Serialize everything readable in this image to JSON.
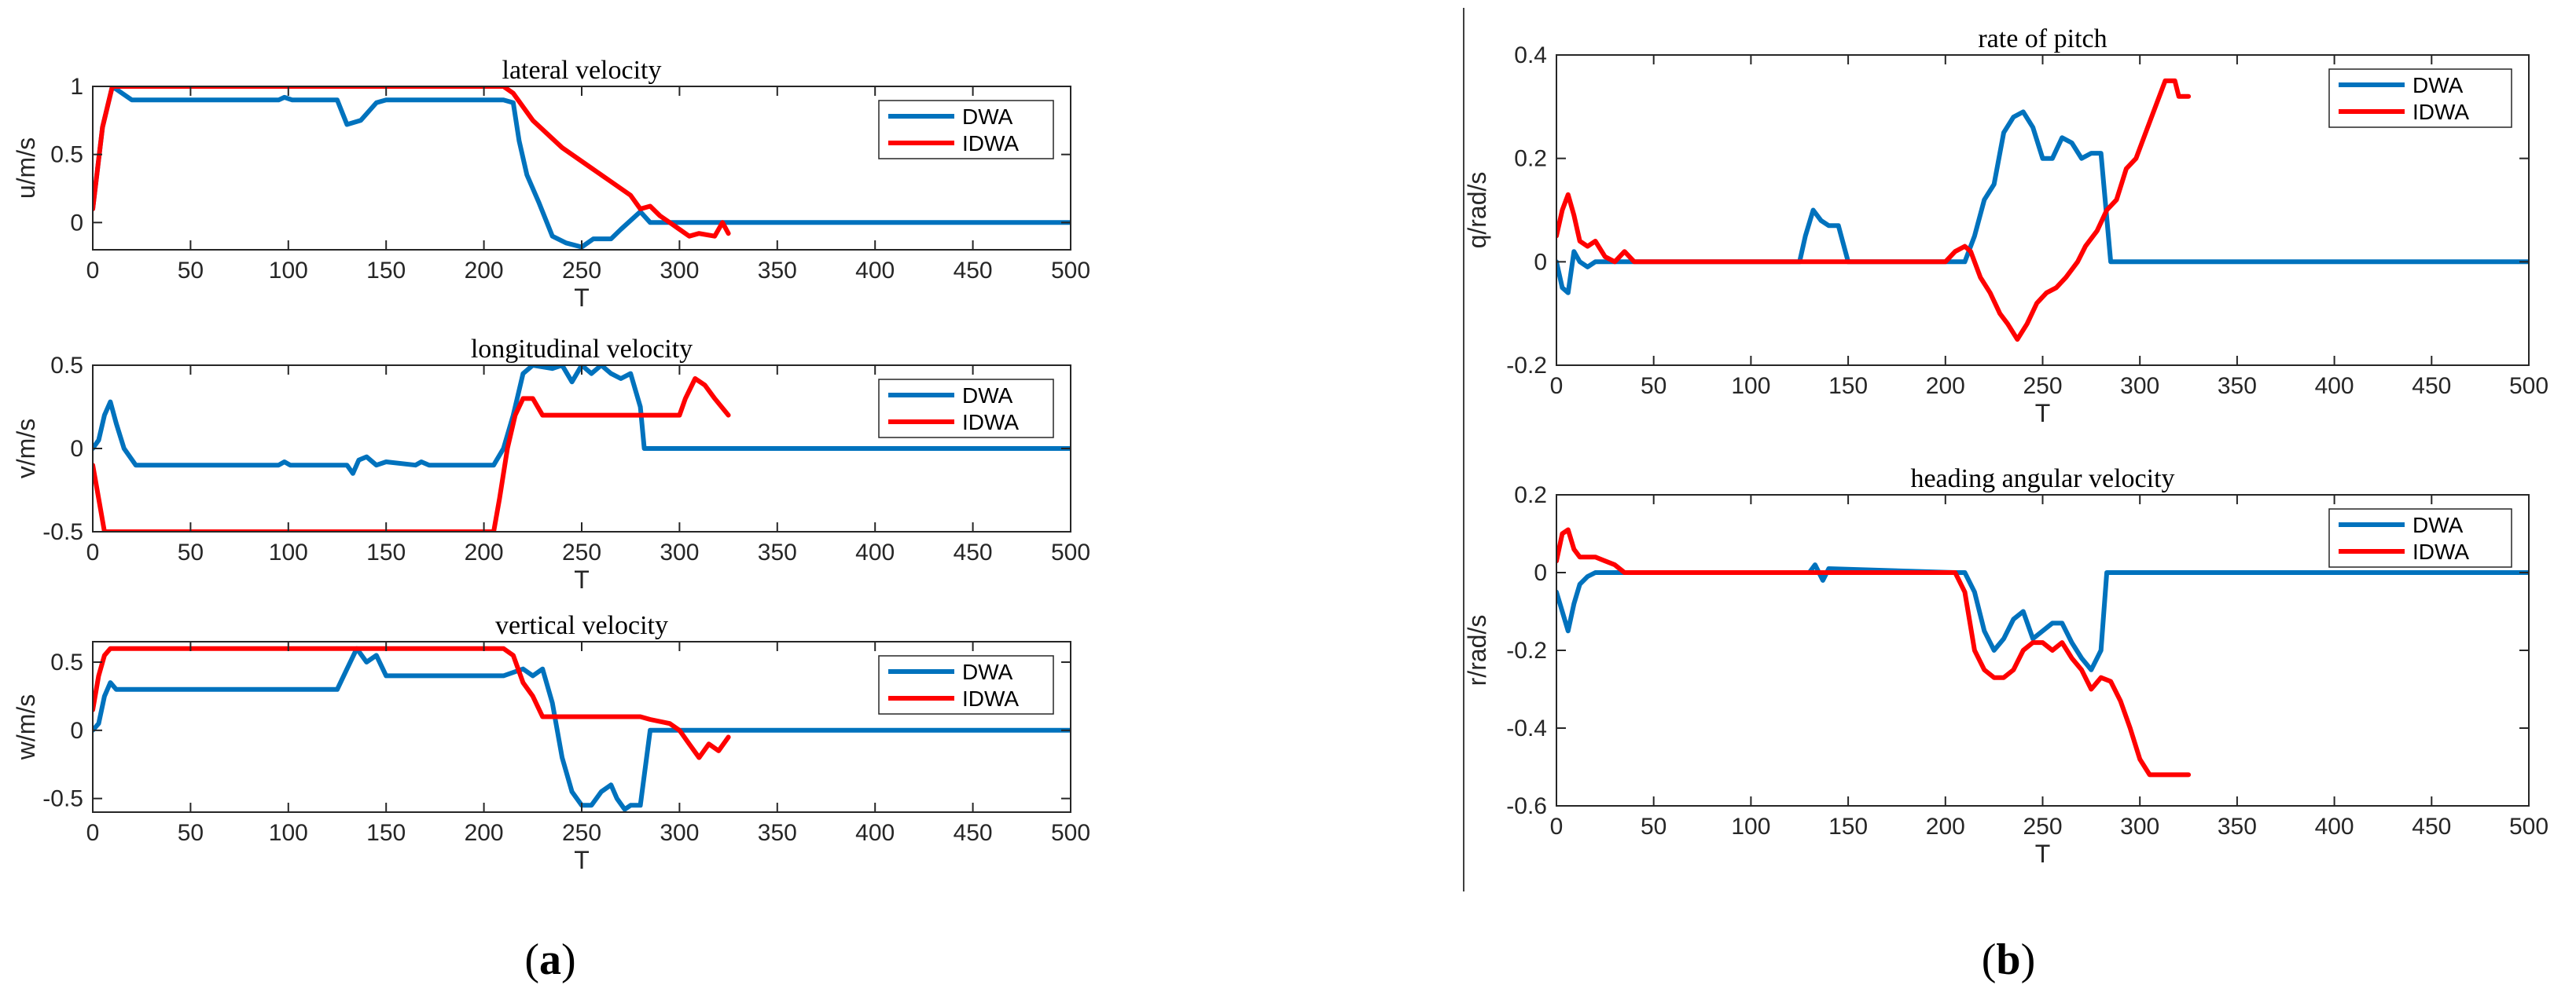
{
  "panels": [
    {
      "id": "a",
      "label_prefix": "(",
      "label_letter": "a",
      "label_suffix": ")"
    },
    {
      "id": "b",
      "label_prefix": "(",
      "label_letter": "b",
      "label_suffix": ")"
    }
  ],
  "legend": {
    "dwa": "DWA",
    "idwa": "IDWA"
  },
  "colors": {
    "dwa": "#0072BD",
    "idwa": "#FF0000",
    "axis": "#262626"
  },
  "chart_data": [
    {
      "type": "line",
      "panel": "a",
      "title": "lateral velocity",
      "xlabel": "T",
      "ylabel": "u/m/s",
      "xlim": [
        0,
        500
      ],
      "ylim": [
        -0.2,
        1
      ],
      "xticks": [
        0,
        50,
        100,
        150,
        200,
        250,
        300,
        350,
        400,
        450,
        500
      ],
      "yticks": [
        0,
        0.5,
        1
      ],
      "legend_position": "top-right",
      "series": [
        {
          "name": "DWA",
          "x": [
            0,
            5,
            10,
            15,
            20,
            95,
            98,
            102,
            125,
            130,
            137,
            145,
            150,
            200,
            210,
            215,
            218,
            222,
            228,
            235,
            242,
            250,
            256,
            265,
            270,
            280,
            285,
            500
          ],
          "y": [
            0.1,
            0.7,
            1.0,
            0.95,
            0.9,
            0.9,
            0.92,
            0.9,
            0.9,
            0.72,
            0.75,
            0.88,
            0.9,
            0.9,
            0.9,
            0.88,
            0.6,
            0.35,
            0.15,
            -0.1,
            -0.15,
            -0.18,
            -0.12,
            -0.12,
            -0.05,
            0.08,
            0.0,
            0.0
          ]
        },
        {
          "name": "IDWA",
          "x": [
            0,
            5,
            10,
            15,
            210,
            215,
            225,
            240,
            255,
            265,
            275,
            280,
            285,
            290,
            295,
            300,
            305,
            310,
            318,
            322,
            325
          ],
          "y": [
            0.1,
            0.7,
            1.0,
            1.0,
            1.0,
            0.95,
            0.75,
            0.55,
            0.4,
            0.3,
            0.2,
            0.1,
            0.12,
            0.05,
            0.0,
            -0.05,
            -0.1,
            -0.08,
            -0.1,
            0.0,
            -0.08
          ]
        }
      ]
    },
    {
      "type": "line",
      "panel": "a",
      "title": "longitudinal velocity",
      "xlabel": "T",
      "ylabel": "v/m/s",
      "xlim": [
        0,
        500
      ],
      "ylim": [
        -0.5,
        0.5
      ],
      "xticks": [
        0,
        50,
        100,
        150,
        200,
        250,
        300,
        350,
        400,
        450,
        500
      ],
      "yticks": [
        -0.5,
        0,
        0.5
      ],
      "legend_position": "top-right",
      "series": [
        {
          "name": "DWA",
          "x": [
            0,
            3,
            6,
            9,
            12,
            16,
            22,
            95,
            98,
            101,
            130,
            133,
            136,
            140,
            145,
            150,
            165,
            168,
            172,
            205,
            210,
            215,
            220,
            225,
            235,
            240,
            245,
            250,
            255,
            260,
            265,
            270,
            275,
            280,
            282,
            500
          ],
          "y": [
            0.0,
            0.05,
            0.2,
            0.28,
            0.15,
            0.0,
            -0.1,
            -0.1,
            -0.08,
            -0.1,
            -0.1,
            -0.15,
            -0.07,
            -0.05,
            -0.1,
            -0.08,
            -0.1,
            -0.08,
            -0.1,
            -0.1,
            0.0,
            0.2,
            0.45,
            0.5,
            0.48,
            0.5,
            0.4,
            0.5,
            0.45,
            0.5,
            0.45,
            0.42,
            0.45,
            0.25,
            0.0,
            0.0
          ]
        },
        {
          "name": "IDWA",
          "x": [
            0,
            3,
            6,
            205,
            208,
            212,
            216,
            220,
            225,
            230,
            280,
            283,
            290,
            300,
            303,
            308,
            313,
            318,
            325
          ],
          "y": [
            -0.1,
            -0.3,
            -0.5,
            -0.5,
            -0.3,
            0.0,
            0.2,
            0.3,
            0.3,
            0.2,
            0.2,
            0.2,
            0.2,
            0.2,
            0.3,
            0.42,
            0.38,
            0.3,
            0.2
          ]
        }
      ]
    },
    {
      "type": "line",
      "panel": "a",
      "title": "vertical velocity",
      "xlabel": "T",
      "ylabel": "w/m/s",
      "xlim": [
        0,
        500
      ],
      "ylim": [
        -0.6,
        0.65
      ],
      "xticks": [
        0,
        50,
        100,
        150,
        200,
        250,
        300,
        350,
        400,
        450,
        500
      ],
      "yticks": [
        -0.5,
        0,
        0.5
      ],
      "legend_position": "top-right",
      "series": [
        {
          "name": "DWA",
          "x": [
            0,
            3,
            6,
            9,
            12,
            16,
            20,
            125,
            130,
            135,
            140,
            145,
            150,
            210,
            220,
            225,
            230,
            235,
            240,
            245,
            250,
            255,
            260,
            265,
            268,
            272,
            275,
            280,
            285,
            500
          ],
          "y": [
            0.0,
            0.05,
            0.25,
            0.35,
            0.3,
            0.3,
            0.3,
            0.3,
            0.45,
            0.6,
            0.5,
            0.55,
            0.4,
            0.4,
            0.45,
            0.4,
            0.45,
            0.2,
            -0.2,
            -0.45,
            -0.55,
            -0.55,
            -0.45,
            -0.4,
            -0.5,
            -0.58,
            -0.55,
            -0.55,
            0.0,
            0.0
          ]
        },
        {
          "name": "IDWA",
          "x": [
            0,
            3,
            6,
            9,
            12,
            210,
            215,
            220,
            225,
            230,
            235,
            280,
            285,
            295,
            300,
            305,
            310,
            315,
            320,
            325
          ],
          "y": [
            0.15,
            0.4,
            0.55,
            0.6,
            0.6,
            0.6,
            0.55,
            0.35,
            0.25,
            0.1,
            0.1,
            0.1,
            0.08,
            0.05,
            0.0,
            -0.1,
            -0.2,
            -0.1,
            -0.15,
            -0.05
          ]
        }
      ]
    },
    {
      "type": "line",
      "panel": "b",
      "title": "rate of pitch",
      "xlabel": "T",
      "ylabel": "q/rad/s",
      "xlim": [
        0,
        500
      ],
      "ylim": [
        -0.2,
        0.4
      ],
      "xticks": [
        0,
        50,
        100,
        150,
        200,
        250,
        300,
        350,
        400,
        450,
        500
      ],
      "yticks": [
        -0.2,
        0,
        0.2,
        0.4
      ],
      "legend_position": "top-right",
      "series": [
        {
          "name": "DWA",
          "x": [
            0,
            3,
            6,
            9,
            12,
            16,
            20,
            125,
            128,
            132,
            136,
            140,
            145,
            150,
            210,
            215,
            220,
            225,
            230,
            235,
            240,
            245,
            250,
            255,
            260,
            265,
            270,
            275,
            280,
            285,
            500
          ],
          "y": [
            0.0,
            -0.05,
            -0.06,
            0.02,
            0.0,
            -0.01,
            0.0,
            0.0,
            0.05,
            0.1,
            0.08,
            0.07,
            0.07,
            0.0,
            0.0,
            0.05,
            0.12,
            0.15,
            0.25,
            0.28,
            0.29,
            0.26,
            0.2,
            0.2,
            0.24,
            0.23,
            0.2,
            0.21,
            0.21,
            0.0,
            0.0
          ]
        },
        {
          "name": "IDWA",
          "x": [
            0,
            3,
            6,
            9,
            12,
            16,
            20,
            25,
            30,
            35,
            40,
            200,
            205,
            210,
            213,
            218,
            223,
            228,
            232,
            237,
            242,
            247,
            252,
            257,
            262,
            268,
            272,
            278,
            283,
            288,
            293,
            298,
            303,
            308,
            313,
            318,
            320,
            325
          ],
          "y": [
            0.05,
            0.1,
            0.13,
            0.09,
            0.04,
            0.03,
            0.04,
            0.01,
            0.0,
            0.02,
            0.0,
            0.0,
            0.02,
            0.03,
            0.02,
            -0.03,
            -0.06,
            -0.1,
            -0.12,
            -0.15,
            -0.12,
            -0.08,
            -0.06,
            -0.05,
            -0.03,
            0.0,
            0.03,
            0.06,
            0.1,
            0.12,
            0.18,
            0.2,
            0.25,
            0.3,
            0.35,
            0.35,
            0.32,
            0.32
          ]
        }
      ]
    },
    {
      "type": "line",
      "panel": "b",
      "title": "heading angular velocity",
      "xlabel": "T",
      "ylabel": "r/rad/s",
      "xlim": [
        0,
        500
      ],
      "ylim": [
        -0.6,
        0.2
      ],
      "xticks": [
        0,
        50,
        100,
        150,
        200,
        250,
        300,
        350,
        400,
        450,
        500
      ],
      "yticks": [
        -0.6,
        -0.4,
        -0.2,
        0,
        0.2
      ],
      "legend_position": "top-right",
      "series": [
        {
          "name": "DWA",
          "x": [
            0,
            3,
            6,
            9,
            12,
            16,
            20,
            130,
            133,
            137,
            140,
            205,
            210,
            215,
            220,
            225,
            230,
            235,
            240,
            245,
            250,
            255,
            260,
            265,
            270,
            275,
            280,
            283,
            500
          ],
          "y": [
            -0.05,
            -0.1,
            -0.15,
            -0.08,
            -0.03,
            -0.01,
            0.0,
            0.0,
            0.02,
            -0.02,
            0.01,
            0.0,
            0.0,
            -0.05,
            -0.15,
            -0.2,
            -0.17,
            -0.12,
            -0.1,
            -0.17,
            -0.15,
            -0.13,
            -0.13,
            -0.18,
            -0.22,
            -0.25,
            -0.2,
            0.0,
            0.0
          ]
        },
        {
          "name": "IDWA",
          "x": [
            0,
            3,
            6,
            9,
            12,
            16,
            20,
            25,
            30,
            35,
            40,
            205,
            210,
            215,
            220,
            225,
            230,
            235,
            240,
            245,
            250,
            255,
            260,
            265,
            270,
            275,
            280,
            285,
            290,
            295,
            300,
            305,
            310,
            325
          ],
          "y": [
            0.03,
            0.1,
            0.11,
            0.06,
            0.04,
            0.04,
            0.04,
            0.03,
            0.02,
            0.0,
            0.0,
            0.0,
            -0.05,
            -0.2,
            -0.25,
            -0.27,
            -0.27,
            -0.25,
            -0.2,
            -0.18,
            -0.18,
            -0.2,
            -0.18,
            -0.22,
            -0.25,
            -0.3,
            -0.27,
            -0.28,
            -0.33,
            -0.4,
            -0.48,
            -0.52,
            -0.52,
            -0.52
          ]
        }
      ]
    }
  ]
}
